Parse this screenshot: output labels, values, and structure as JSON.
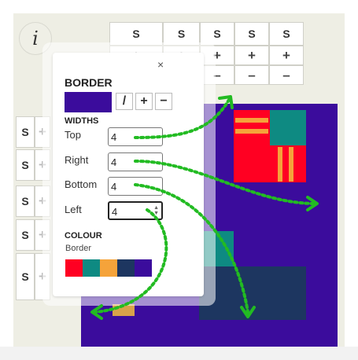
{
  "info_button": "i",
  "column_headers": [
    "S",
    "S",
    "S",
    "S",
    "S"
  ],
  "column_controls": [
    "+",
    "+",
    "+",
    "+",
    "+",
    "–",
    "–",
    "–"
  ],
  "row_headers": [
    "S",
    "S",
    "S",
    "S",
    "S"
  ],
  "row_controls": [
    "+",
    "+",
    "+",
    "+",
    "+"
  ],
  "panel": {
    "close": "×",
    "title": "BORDER",
    "tools": {
      "pencil": "/",
      "add": "+",
      "remove": "−"
    },
    "widths_heading": "WIDTHS",
    "fields": [
      {
        "label": "Top",
        "value": "4"
      },
      {
        "label": "Right",
        "value": "4"
      },
      {
        "label": "Bottom",
        "value": "4"
      },
      {
        "label": "Left",
        "value": "4"
      }
    ],
    "colour_heading": "COLOUR",
    "colour_sublabel": "Border",
    "palette": [
      "#ff0022",
      "#0e8a82",
      "#f5a33a",
      "#1d3660",
      "#3b0c9c"
    ]
  },
  "colors": {
    "canvas": "#3b0c9c",
    "red": "#ff0022",
    "teal": "#0e8a82",
    "orange": "#f5a33a",
    "navy": "#1d3660",
    "arrow": "#22bb22"
  }
}
